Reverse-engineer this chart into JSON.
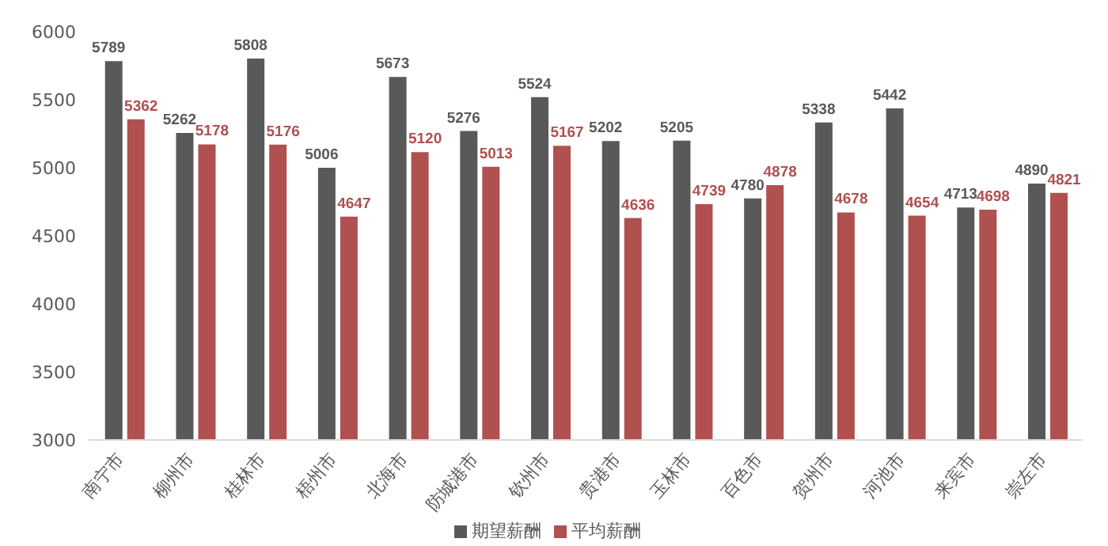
{
  "chart_data": {
    "type": "bar",
    "categories": [
      "南宁市",
      "柳州市",
      "桂林市",
      "梧州市",
      "北海市",
      "防城港市",
      "钦州市",
      "贵港市",
      "玉林市",
      "百色市",
      "贺州市",
      "河池市",
      "来宾市",
      "崇左市"
    ],
    "series": [
      {
        "name": "期望薪酬",
        "color": "#595959",
        "values": [
          5789,
          5262,
          5808,
          5006,
          5673,
          5276,
          5524,
          5202,
          5205,
          4780,
          5338,
          5442,
          4713,
          4890
        ]
      },
      {
        "name": "平均薪酬",
        "color": "#b0504f",
        "values": [
          5362,
          5178,
          5176,
          4647,
          5120,
          5013,
          5167,
          4636,
          4739,
          4878,
          4678,
          4654,
          4698,
          4821
        ]
      }
    ],
    "ylim": [
      3000,
      6000
    ],
    "yticks": [
      3000,
      3500,
      4000,
      4500,
      5000,
      5500,
      6000
    ],
    "grid": false,
    "legend": "bottom",
    "data_labels": true
  }
}
